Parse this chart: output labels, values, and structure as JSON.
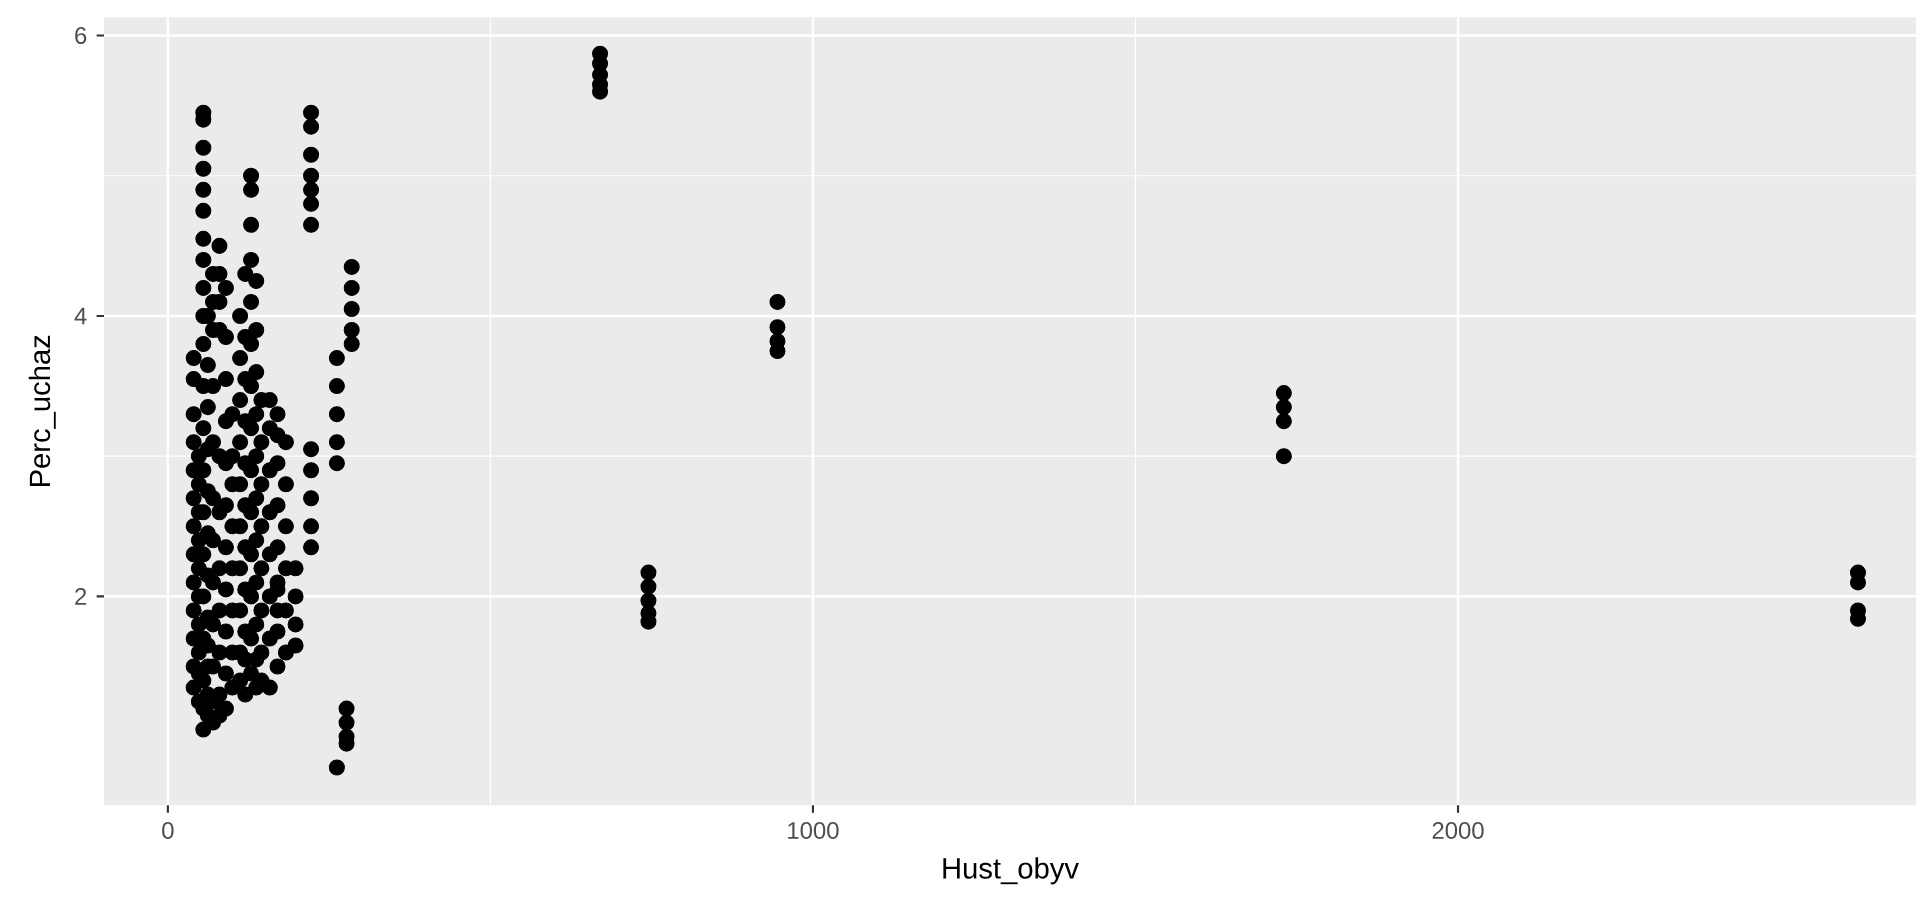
{
  "chart_data": {
    "type": "scatter",
    "xlabel": "Hust_obyv",
    "ylabel": "Perc_uchaz",
    "xlim": [
      -99,
      2710
    ],
    "ylim": [
      0.51,
      6.13
    ],
    "xticks": [
      0,
      1000,
      2000
    ],
    "yticks": [
      2,
      4,
      6
    ],
    "grid": true,
    "series": [
      {
        "color": "#000000",
        "x": [
          40,
          40,
          40,
          40,
          40,
          40,
          40,
          40,
          40,
          40,
          40,
          40,
          40,
          55,
          55,
          55,
          55,
          55,
          55,
          55,
          55,
          55,
          55,
          55,
          55,
          55,
          55,
          55,
          55,
          55,
          55,
          55,
          55,
          55,
          70,
          70,
          70,
          70,
          70,
          70,
          70,
          70,
          70,
          70,
          70,
          70,
          80,
          80,
          80,
          80,
          80,
          80,
          80,
          80,
          80,
          80,
          80,
          100,
          100,
          100,
          100,
          100,
          100,
          100,
          100,
          112,
          112,
          112,
          112,
          112,
          112,
          112,
          112,
          112,
          112,
          129,
          129,
          129,
          129,
          129,
          129,
          129,
          129,
          129,
          129,
          129,
          129,
          129,
          129,
          145,
          145,
          145,
          145,
          145,
          145,
          145,
          145,
          158,
          158,
          158,
          158,
          158,
          158,
          158,
          158,
          183,
          183,
          183,
          183,
          183,
          183,
          198,
          198,
          198,
          198,
          222,
          222,
          222,
          222,
          222,
          222,
          222,
          222,
          222,
          222,
          222,
          222,
          262,
          262,
          262,
          262,
          262,
          262,
          277,
          277,
          277,
          277,
          285,
          285,
          285,
          285,
          285,
          670,
          670,
          670,
          670,
          670,
          745,
          745,
          745,
          745,
          745,
          945,
          945,
          945,
          945,
          1730,
          1730,
          1730,
          1730,
          2620,
          2620,
          2620,
          2620,
          48,
          48,
          48,
          48,
          48,
          48,
          48,
          48,
          48,
          48,
          62,
          62,
          62,
          62,
          62,
          62,
          62,
          62,
          62,
          62,
          62,
          62,
          90,
          90,
          90,
          90,
          90,
          90,
          90,
          90,
          90,
          90,
          90,
          120,
          120,
          120,
          120,
          120,
          120,
          120,
          120,
          120,
          120,
          120,
          137,
          137,
          137,
          137,
          137,
          137,
          137,
          137,
          137,
          137,
          137,
          170,
          170,
          170,
          170,
          170,
          170,
          170,
          170,
          170,
          170
        ],
        "values": [
          3.7,
          3.55,
          3.3,
          3.1,
          2.9,
          2.7,
          2.5,
          2.3,
          2.1,
          1.9,
          1.7,
          1.5,
          1.35,
          5.45,
          5.4,
          5.2,
          5.05,
          4.9,
          4.75,
          4.55,
          4.4,
          4.2,
          4.0,
          3.8,
          3.5,
          3.2,
          2.9,
          2.6,
          2.3,
          2.0,
          1.7,
          1.4,
          1.2,
          1.05,
          4.3,
          4.1,
          3.9,
          3.5,
          3.1,
          2.7,
          2.4,
          2.1,
          1.8,
          1.5,
          1.25,
          1.1,
          4.5,
          4.3,
          4.1,
          3.9,
          3.0,
          2.6,
          2.2,
          1.9,
          1.6,
          1.3,
          1.15,
          3.3,
          3.0,
          2.8,
          2.5,
          2.2,
          1.9,
          1.6,
          1.35,
          4.0,
          3.7,
          3.4,
          3.1,
          2.8,
          2.5,
          2.2,
          1.9,
          1.6,
          1.4,
          5.0,
          4.9,
          4.65,
          4.4,
          4.1,
          3.8,
          3.5,
          3.2,
          2.9,
          2.6,
          2.3,
          2.0,
          1.7,
          1.45,
          3.4,
          3.1,
          2.8,
          2.5,
          2.2,
          1.9,
          1.6,
          1.4,
          3.4,
          3.2,
          2.9,
          2.6,
          2.3,
          2.0,
          1.7,
          1.35,
          3.1,
          2.8,
          2.5,
          2.2,
          1.9,
          1.6,
          2.2,
          2.0,
          1.8,
          1.65,
          5.45,
          5.35,
          5.15,
          5.0,
          4.9,
          4.8,
          4.65,
          3.05,
          2.9,
          2.7,
          2.5,
          2.35,
          3.7,
          3.5,
          3.3,
          3.1,
          2.95,
          0.78,
          1.2,
          1.1,
          1.0,
          0.95,
          4.35,
          4.2,
          4.05,
          3.9,
          3.8,
          5.87,
          5.8,
          5.72,
          5.65,
          5.6,
          2.17,
          2.07,
          1.97,
          1.88,
          1.82,
          4.1,
          3.92,
          3.82,
          3.75,
          3.45,
          3.35,
          3.25,
          3.0,
          2.17,
          2.1,
          1.9,
          1.84,
          1.25,
          1.45,
          1.6,
          1.8,
          2.0,
          2.2,
          2.4,
          2.6,
          2.8,
          3.0,
          1.15,
          1.3,
          1.5,
          1.65,
          1.85,
          2.15,
          2.45,
          2.75,
          3.05,
          3.35,
          3.65,
          4.0,
          1.2,
          1.45,
          1.75,
          2.05,
          2.35,
          2.65,
          2.95,
          3.25,
          3.55,
          3.85,
          4.2,
          1.3,
          1.55,
          1.75,
          2.05,
          2.35,
          2.65,
          2.95,
          3.25,
          3.55,
          3.85,
          4.3,
          1.35,
          1.55,
          1.8,
          2.1,
          2.4,
          2.7,
          3.0,
          3.3,
          3.6,
          3.9,
          4.25,
          1.5,
          1.75,
          2.05,
          2.35,
          2.65,
          2.95,
          3.15,
          3.3,
          2.1,
          1.9
        ]
      }
    ]
  }
}
